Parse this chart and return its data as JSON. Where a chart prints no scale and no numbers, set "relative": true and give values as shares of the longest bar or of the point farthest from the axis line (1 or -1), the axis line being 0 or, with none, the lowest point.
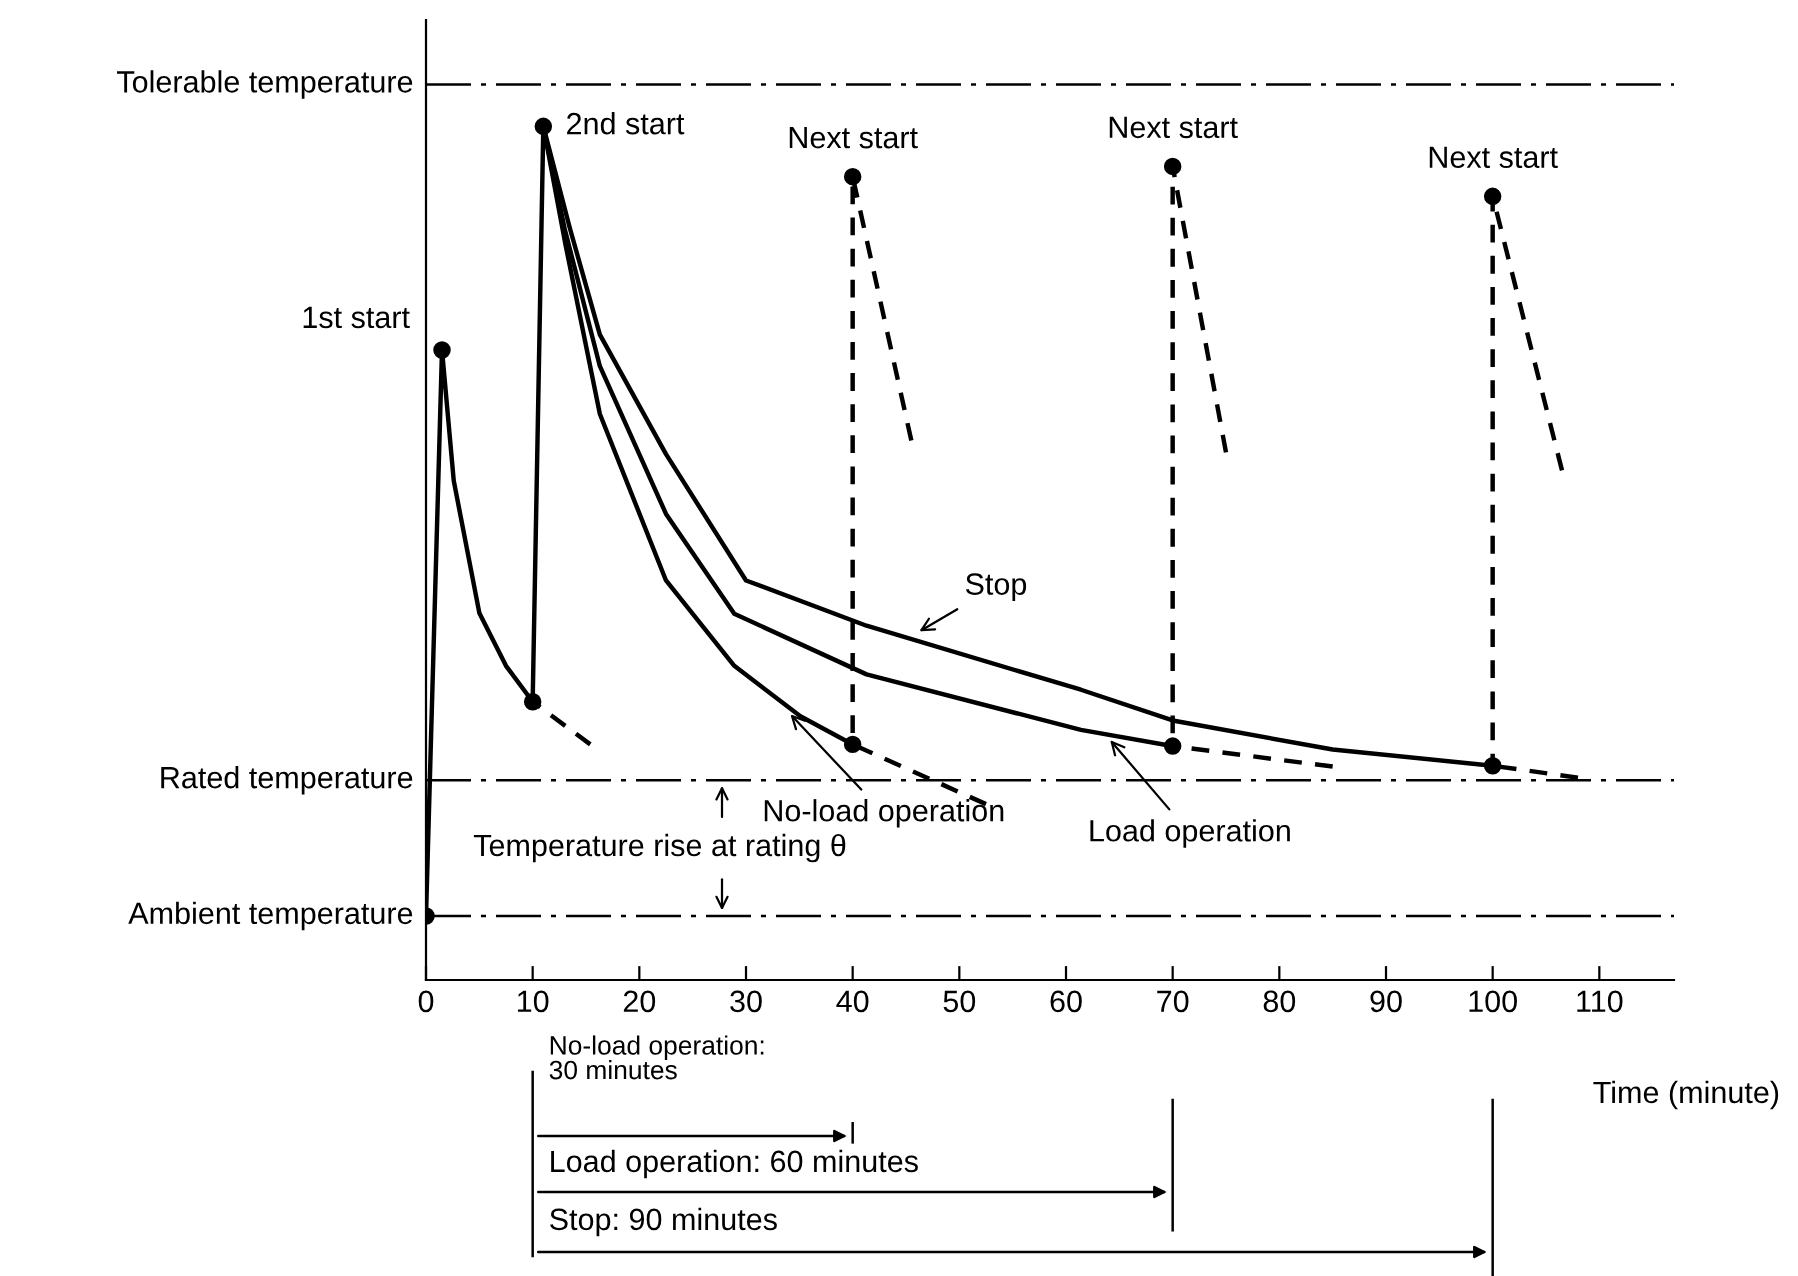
{
  "chart_data": {
    "type": "line",
    "relative": true,
    "xlabel": "Time (minute)",
    "xlim": [
      0,
      117
    ],
    "xticks": [
      0,
      10,
      20,
      30,
      40,
      50,
      60,
      70,
      80,
      90,
      100,
      110
    ],
    "grid": false,
    "legend": false,
    "series": [
      {
        "color": "#000000",
        "line_style": "solid",
        "x": [
          0,
          1.5,
          2.6,
          5,
          7.5,
          10
        ],
        "values": [
          0.075,
          0.738,
          0.585,
          0.43,
          0.368,
          0.326
        ]
      },
      {
        "color": "#000000",
        "line_style": "dashed",
        "x": [
          10,
          15.4
        ],
        "values": [
          0.326,
          0.276
        ]
      },
      {
        "color": "#000000",
        "line_style": "solid",
        "x": [
          10,
          11
        ],
        "values": [
          0.326,
          1.0
        ]
      },
      {
        "color": "#000000",
        "line_style": "solid",
        "x": [
          11,
          13.1,
          16.3,
          22.5,
          28.9,
          35.1,
          40
        ],
        "values": [
          1.0,
          0.86,
          0.663,
          0.468,
          0.368,
          0.309,
          0.276
        ]
      },
      {
        "color": "#000000",
        "line_style": "dashed",
        "x": [
          40,
          52.5
        ],
        "values": [
          0.276,
          0.206
        ]
      },
      {
        "color": "#000000",
        "line_style": "solid",
        "x": [
          11,
          13,
          16.3,
          22.5,
          28.9,
          41.3,
          61.4,
          70
        ],
        "values": [
          1.0,
          0.88,
          0.719,
          0.546,
          0.429,
          0.358,
          0.293,
          0.274
        ]
      },
      {
        "color": "#000000",
        "line_style": "dashed",
        "x": [
          70,
          85
        ],
        "values": [
          0.274,
          0.25
        ]
      },
      {
        "color": "#000000",
        "line_style": "solid",
        "x": [
          11,
          13.5,
          16.3,
          22.5,
          30,
          41.3,
          61.4,
          70,
          85,
          100
        ],
        "values": [
          1.0,
          0.88,
          0.756,
          0.616,
          0.468,
          0.415,
          0.34,
          0.304,
          0.27,
          0.251
        ]
      },
      {
        "color": "#000000",
        "line_style": "dashed",
        "x": [
          100,
          108
        ],
        "values": [
          0.251,
          0.237
        ]
      },
      {
        "color": "#000000",
        "line_style": "dashed",
        "x": [
          40,
          40,
          45.5
        ],
        "values": [
          0.276,
          0.941,
          0.632
        ]
      },
      {
        "color": "#000000",
        "line_style": "dashed",
        "x": [
          70,
          70,
          75
        ],
        "values": [
          0.274,
          0.953,
          0.618
        ]
      },
      {
        "color": "#000000",
        "line_style": "dashed",
        "x": [
          100,
          100,
          106.5
        ],
        "values": [
          0.251,
          0.918,
          0.597
        ]
      },
      {
        "type": "scatter",
        "marker": "circle",
        "color": "#000000",
        "x": [
          0,
          1.5,
          10,
          11,
          40,
          40,
          70,
          70,
          100,
          100
        ],
        "values": [
          0.075,
          0.738,
          0.326,
          1.0,
          0.276,
          0.941,
          0.274,
          0.953,
          0.251,
          0.918
        ]
      }
    ],
    "ref_lines": [
      {
        "axis": "y",
        "value": 1.049,
        "label": "Tolerable temperature",
        "color": "#000000",
        "line_style": "dashdot"
      },
      {
        "axis": "y",
        "value": 0.234,
        "label": "Rated temperature",
        "color": "#000000",
        "line_style": "dashdot"
      },
      {
        "axis": "y",
        "value": 0.075,
        "label": "Ambient temperature",
        "color": "#000000",
        "line_style": "dashdot"
      }
    ],
    "annotations": [
      {
        "text": "1st start",
        "x": 1.5,
        "y": 0.738
      },
      {
        "text": "2nd start",
        "x": 11,
        "y": 1.0
      },
      {
        "text": "Next start",
        "x": 40,
        "y": 0.941
      },
      {
        "text": "Next start",
        "x": 70,
        "y": 0.953
      },
      {
        "text": "Next start",
        "x": 100,
        "y": 0.918
      },
      {
        "text": "Stop",
        "x": 45.8,
        "y": 0.405
      },
      {
        "text": "No-load operation",
        "x": 33.8,
        "y": 0.316
      },
      {
        "text": "Load operation",
        "x": 63.8,
        "y": 0.286
      },
      "Temperature rise at rating θ",
      "No-load operation:\n30 minutes",
      "Load operation: 60 minutes",
      "Stop: 90 minutes"
    ]
  }
}
